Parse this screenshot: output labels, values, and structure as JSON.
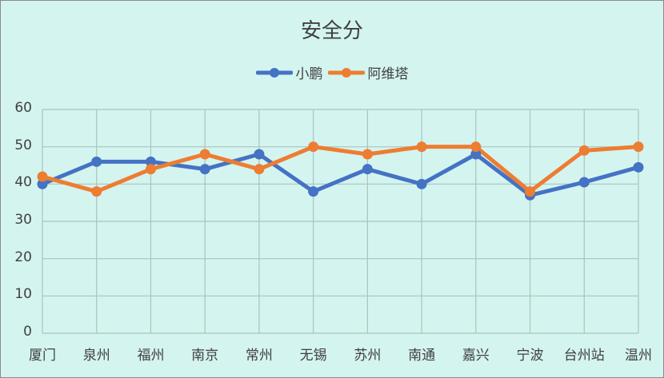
{
  "chart_data": {
    "type": "line",
    "title": "安全分",
    "categories": [
      "厦门",
      "泉州",
      "福州",
      "南京",
      "常州",
      "无锡",
      "苏州",
      "南通",
      "嘉兴",
      "宁波",
      "台州站",
      "温州"
    ],
    "series": [
      {
        "name": "小鹏",
        "color": "#4472c4",
        "values": [
          40,
          46,
          46,
          44,
          48,
          38,
          44,
          40,
          48,
          37,
          40.5,
          44.5
        ]
      },
      {
        "name": "阿维塔",
        "color": "#ed7d31",
        "values": [
          42,
          38,
          44,
          48,
          44,
          50,
          48,
          50,
          50,
          38,
          49,
          50
        ]
      }
    ],
    "xlabel": "",
    "ylabel": "",
    "ylim": [
      0,
      60
    ],
    "yticks": [
      0,
      10,
      20,
      30,
      40,
      50,
      60
    ],
    "grid": true,
    "legend_position": "top"
  },
  "colors": {
    "background": "#d4f4f0",
    "gridline": "#a9c4bd",
    "text": "#404040"
  }
}
